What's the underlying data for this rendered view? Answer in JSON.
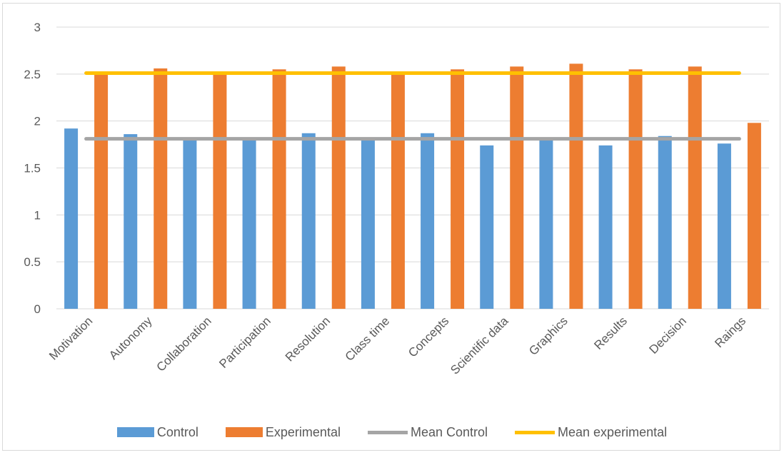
{
  "chart_data": {
    "type": "bar",
    "categories": [
      "Motivation",
      "Autonomy",
      "Collaboration",
      "Participation",
      "Resolution",
      "Class time",
      "Concepts",
      "Scientific data",
      "Graphics",
      "Results",
      "Decision",
      "Raings"
    ],
    "series": [
      {
        "name": "Control",
        "type": "bar",
        "color": "#5b9bd5",
        "values": [
          1.92,
          1.86,
          1.82,
          1.82,
          1.87,
          1.8,
          1.87,
          1.74,
          1.82,
          1.74,
          1.84,
          1.76
        ]
      },
      {
        "name": "Experimental",
        "type": "bar",
        "color": "#ed7d31",
        "values": [
          2.52,
          2.56,
          2.52,
          2.55,
          2.58,
          2.52,
          2.55,
          2.58,
          2.61,
          2.55,
          2.58,
          1.98
        ]
      },
      {
        "name": "Mean Control",
        "type": "line",
        "color": "#a5a5a5",
        "value": 1.81
      },
      {
        "name": "Mean experimental",
        "type": "line",
        "color": "#ffc000",
        "value": 2.51
      }
    ],
    "ylim": [
      0,
      3
    ],
    "yticks": [
      "0",
      "0.5",
      "1",
      "1.5",
      "2",
      "2.5",
      "3"
    ],
    "ytick_values": [
      0,
      0.5,
      1,
      1.5,
      2,
      2.5,
      3
    ],
    "grid": true,
    "legend_position": "bottom",
    "title": "",
    "xlabel": "",
    "ylabel": ""
  }
}
